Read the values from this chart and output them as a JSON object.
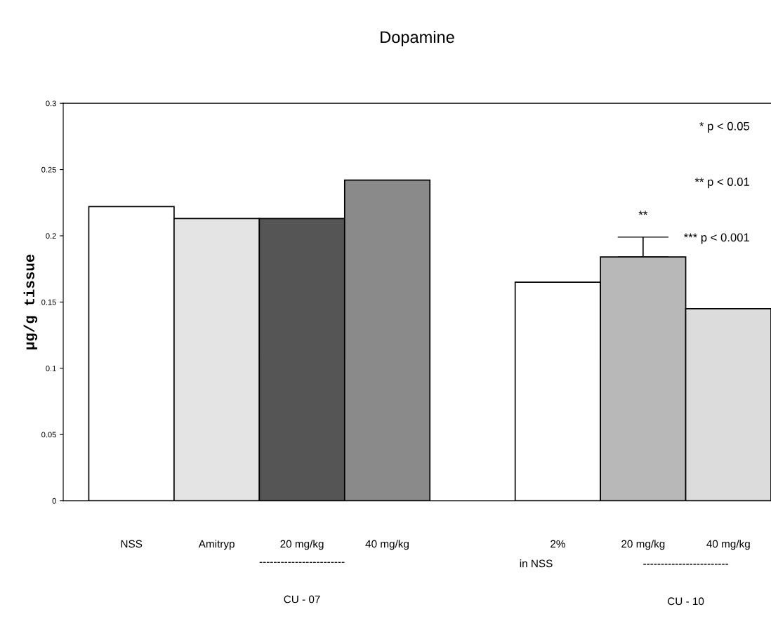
{
  "chart_data": {
    "type": "bar",
    "title": "Dopamine",
    "ylabel": "μg/g tissue",
    "categories": [
      "NSS",
      "Amitryp",
      "20 mg/kg",
      "40 mg/kg",
      null,
      "2%",
      "20 mg/kg",
      "40 mg/kg"
    ],
    "values": [
      0.222,
      0.213,
      0.213,
      0.242,
      null,
      0.165,
      0.184,
      0.145
    ],
    "errors": [
      null,
      null,
      null,
      null,
      null,
      null,
      0.015,
      null
    ],
    "colors": [
      "#ffffff",
      "#e4e4e4",
      "#555555",
      "#8a8a8a",
      "#ffffff",
      "#ffffff",
      "#b8b8b8",
      "#dcdcdc"
    ],
    "ylim": [
      0,
      0.3
    ],
    "yticks": [
      0,
      0.05,
      0.1,
      0.15,
      0.2,
      0.25,
      0.3
    ],
    "grid": false,
    "legend": false,
    "annotations": [
      "* p < 0.05",
      "** p < 0.01",
      "*** p < 0.001",
      "**",
      "in NSS",
      "------------------------",
      "------------------------",
      "CU - 07",
      "CU - 10"
    ]
  }
}
